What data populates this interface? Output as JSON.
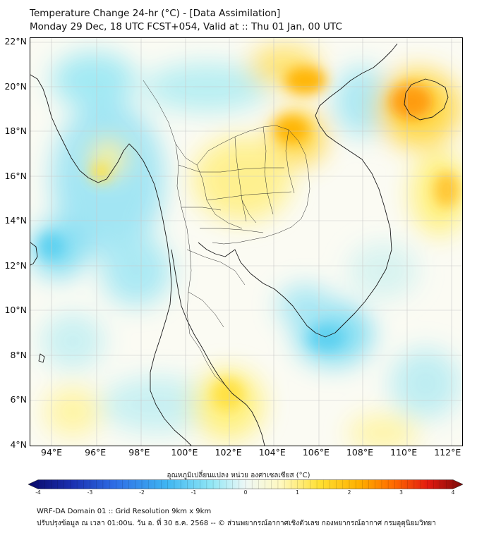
{
  "header": {
    "title_line1": "Temperature Change 24-hr (°C) - [Data Assimilation]",
    "title_line2": "Monday 29 Dec, 18 UTC FCST+054, Valid at :: Thu 01 Jan, 00 UTC"
  },
  "map": {
    "lat_labels": [
      "22°N",
      "20°N",
      "18°N",
      "16°N",
      "14°N",
      "12°N",
      "10°N",
      "8°N",
      "6°N",
      "4°N"
    ],
    "lon_labels": [
      "94°E",
      "96°E",
      "98°E",
      "100°E",
      "102°E",
      "104°E",
      "106°E",
      "108°E",
      "110°E",
      "112°E"
    ],
    "lat_values": [
      22,
      20,
      18,
      16,
      14,
      12,
      10,
      8,
      6,
      4
    ],
    "lon_values": [
      94,
      96,
      98,
      100,
      102,
      104,
      106,
      108,
      110,
      112
    ],
    "lon_range": [
      93,
      112.7
    ],
    "lat_range": [
      4,
      22.2
    ]
  },
  "colorbar": {
    "title": "อุณหภูมิเปลี่ยนแปลง หน่วย องศาเซลเซียส (°C)",
    "tick_labels": [
      "-4",
      "-3",
      "-2",
      "-1",
      "0",
      "1",
      "2",
      "3",
      "4"
    ],
    "tick_values": [
      -4,
      -3,
      -2,
      -1,
      0,
      1,
      2,
      3,
      4
    ],
    "range": [
      -4,
      4
    ],
    "colors": [
      "#0a0a6a",
      "#1a2fb0",
      "#2e6ee6",
      "#3fb6f2",
      "#8fe6f5",
      "#eef8f6",
      "#fff8c0",
      "#ffe033",
      "#ffb000",
      "#ff6a00",
      "#e21a10",
      "#7a0a0a"
    ]
  },
  "footer": {
    "line1": "WRF-DA Domain 01 :: Grid Resolution 9km x 9km",
    "line2": "ปรับปรุงข้อมูล ณ เวลา 01:00น. วัน อ. ที่ 30 ธ.ค. 2568 -- © ส่วนพยากรณ์อากาศเชิงตัวเลข กองพยากรณ์อากาศ กรมอุตุนิยมวิทยา"
  }
}
